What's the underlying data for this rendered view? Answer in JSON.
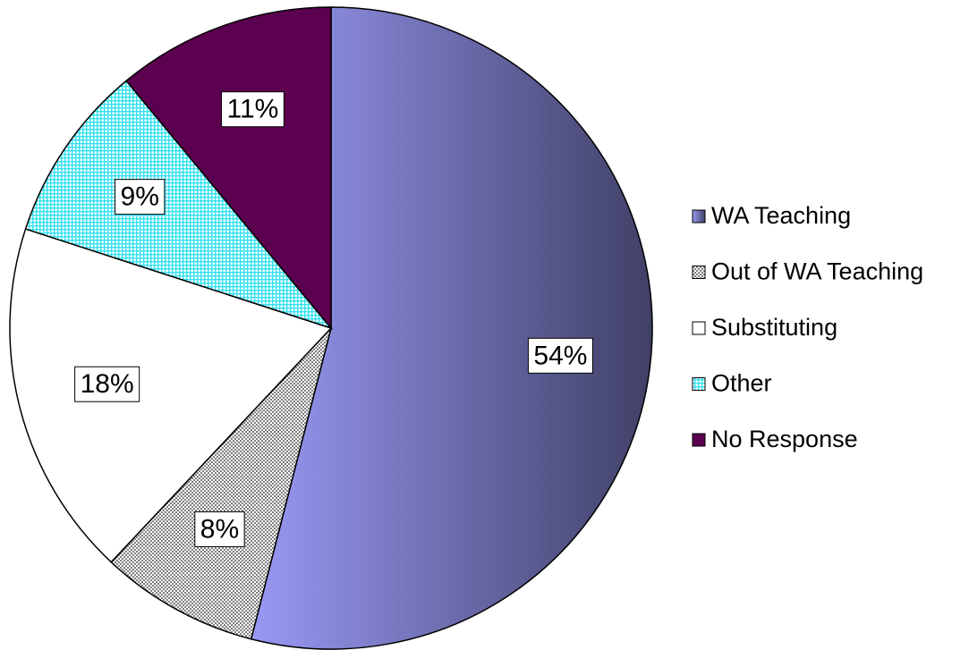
{
  "chart_data": {
    "type": "pie",
    "categories": [
      "WA Teaching",
      "Out of WA Teaching",
      "Substituting",
      "Other",
      "No Response"
    ],
    "values": [
      54,
      8,
      18,
      9,
      11
    ],
    "value_labels": [
      "54%",
      "8%",
      "18%",
      "9%",
      "11%"
    ],
    "colors": [
      "#9999f5",
      "#808080",
      "#ffffff",
      "#33e0f0",
      "#5c0050"
    ],
    "patterns": [
      "gradient",
      "checker",
      null,
      "grid",
      null
    ],
    "legend": "right"
  }
}
